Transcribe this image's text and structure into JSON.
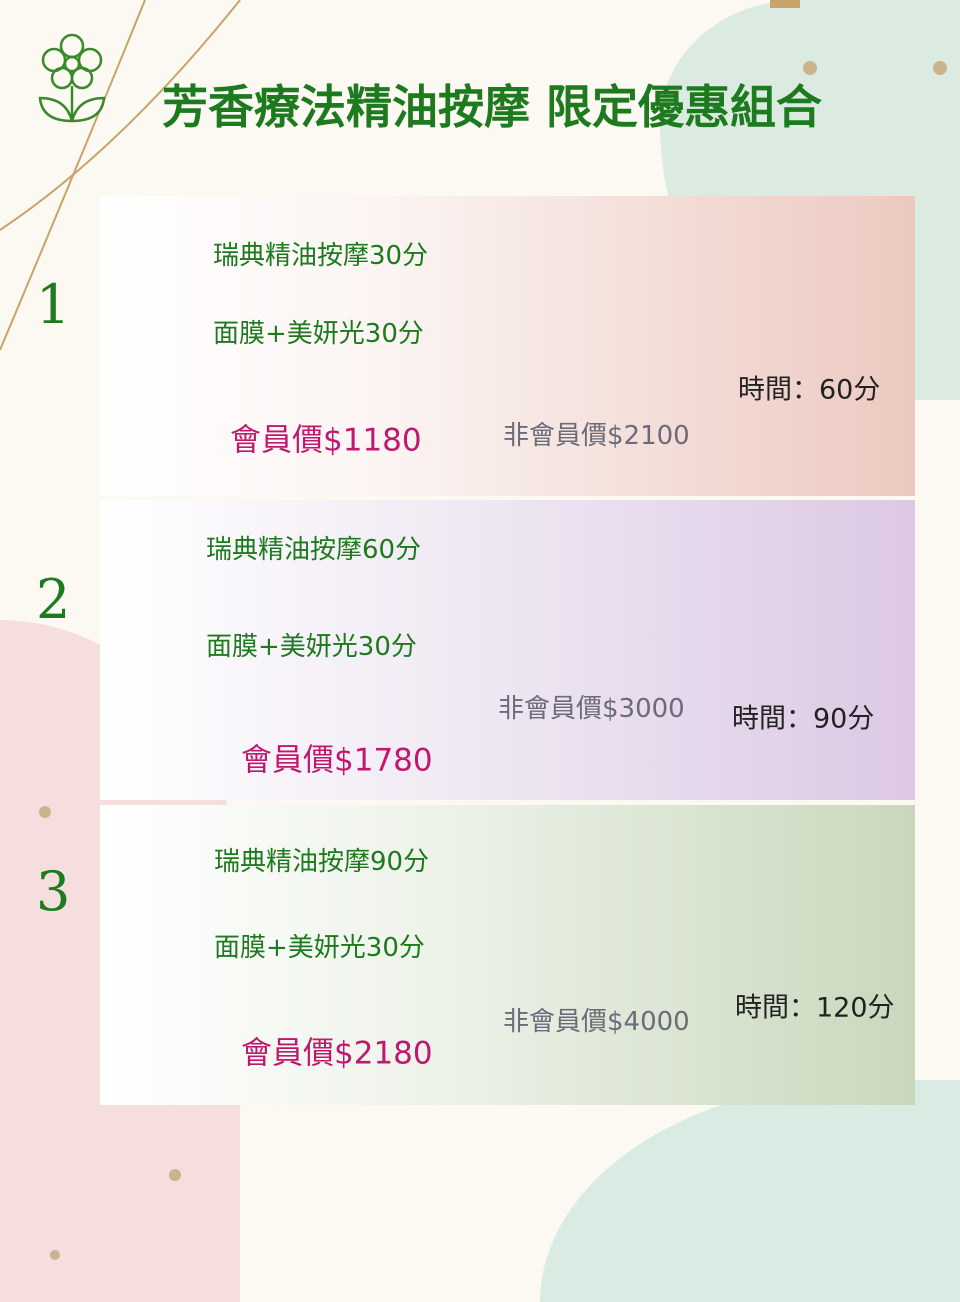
{
  "title": "芳香療法精油按摩 限定優惠組合",
  "icons": {
    "logo": "flower-icon"
  },
  "colors": {
    "title": "#1e7a1e",
    "member_price": "#c0186e",
    "non_member_price": "#6b6b7a"
  },
  "packages": [
    {
      "number": "1",
      "items": [
        "瑞典精油按摩30分",
        "面膜+美妍光30分"
      ],
      "time": "時間：60分",
      "member_price": "會員價$1180",
      "non_member_price": "非會員價$2100"
    },
    {
      "number": "2",
      "items": [
        "瑞典精油按摩60分",
        "面膜+美妍光30分"
      ],
      "time": "時間：90分",
      "member_price": "會員價$1780",
      "non_member_price": "非會員價$3000"
    },
    {
      "number": "3",
      "items": [
        "瑞典精油按摩90分",
        "面膜+美妍光30分"
      ],
      "time": "時間：120分",
      "member_price": "會員價$2180",
      "non_member_price": "非會員價$4000"
    }
  ]
}
